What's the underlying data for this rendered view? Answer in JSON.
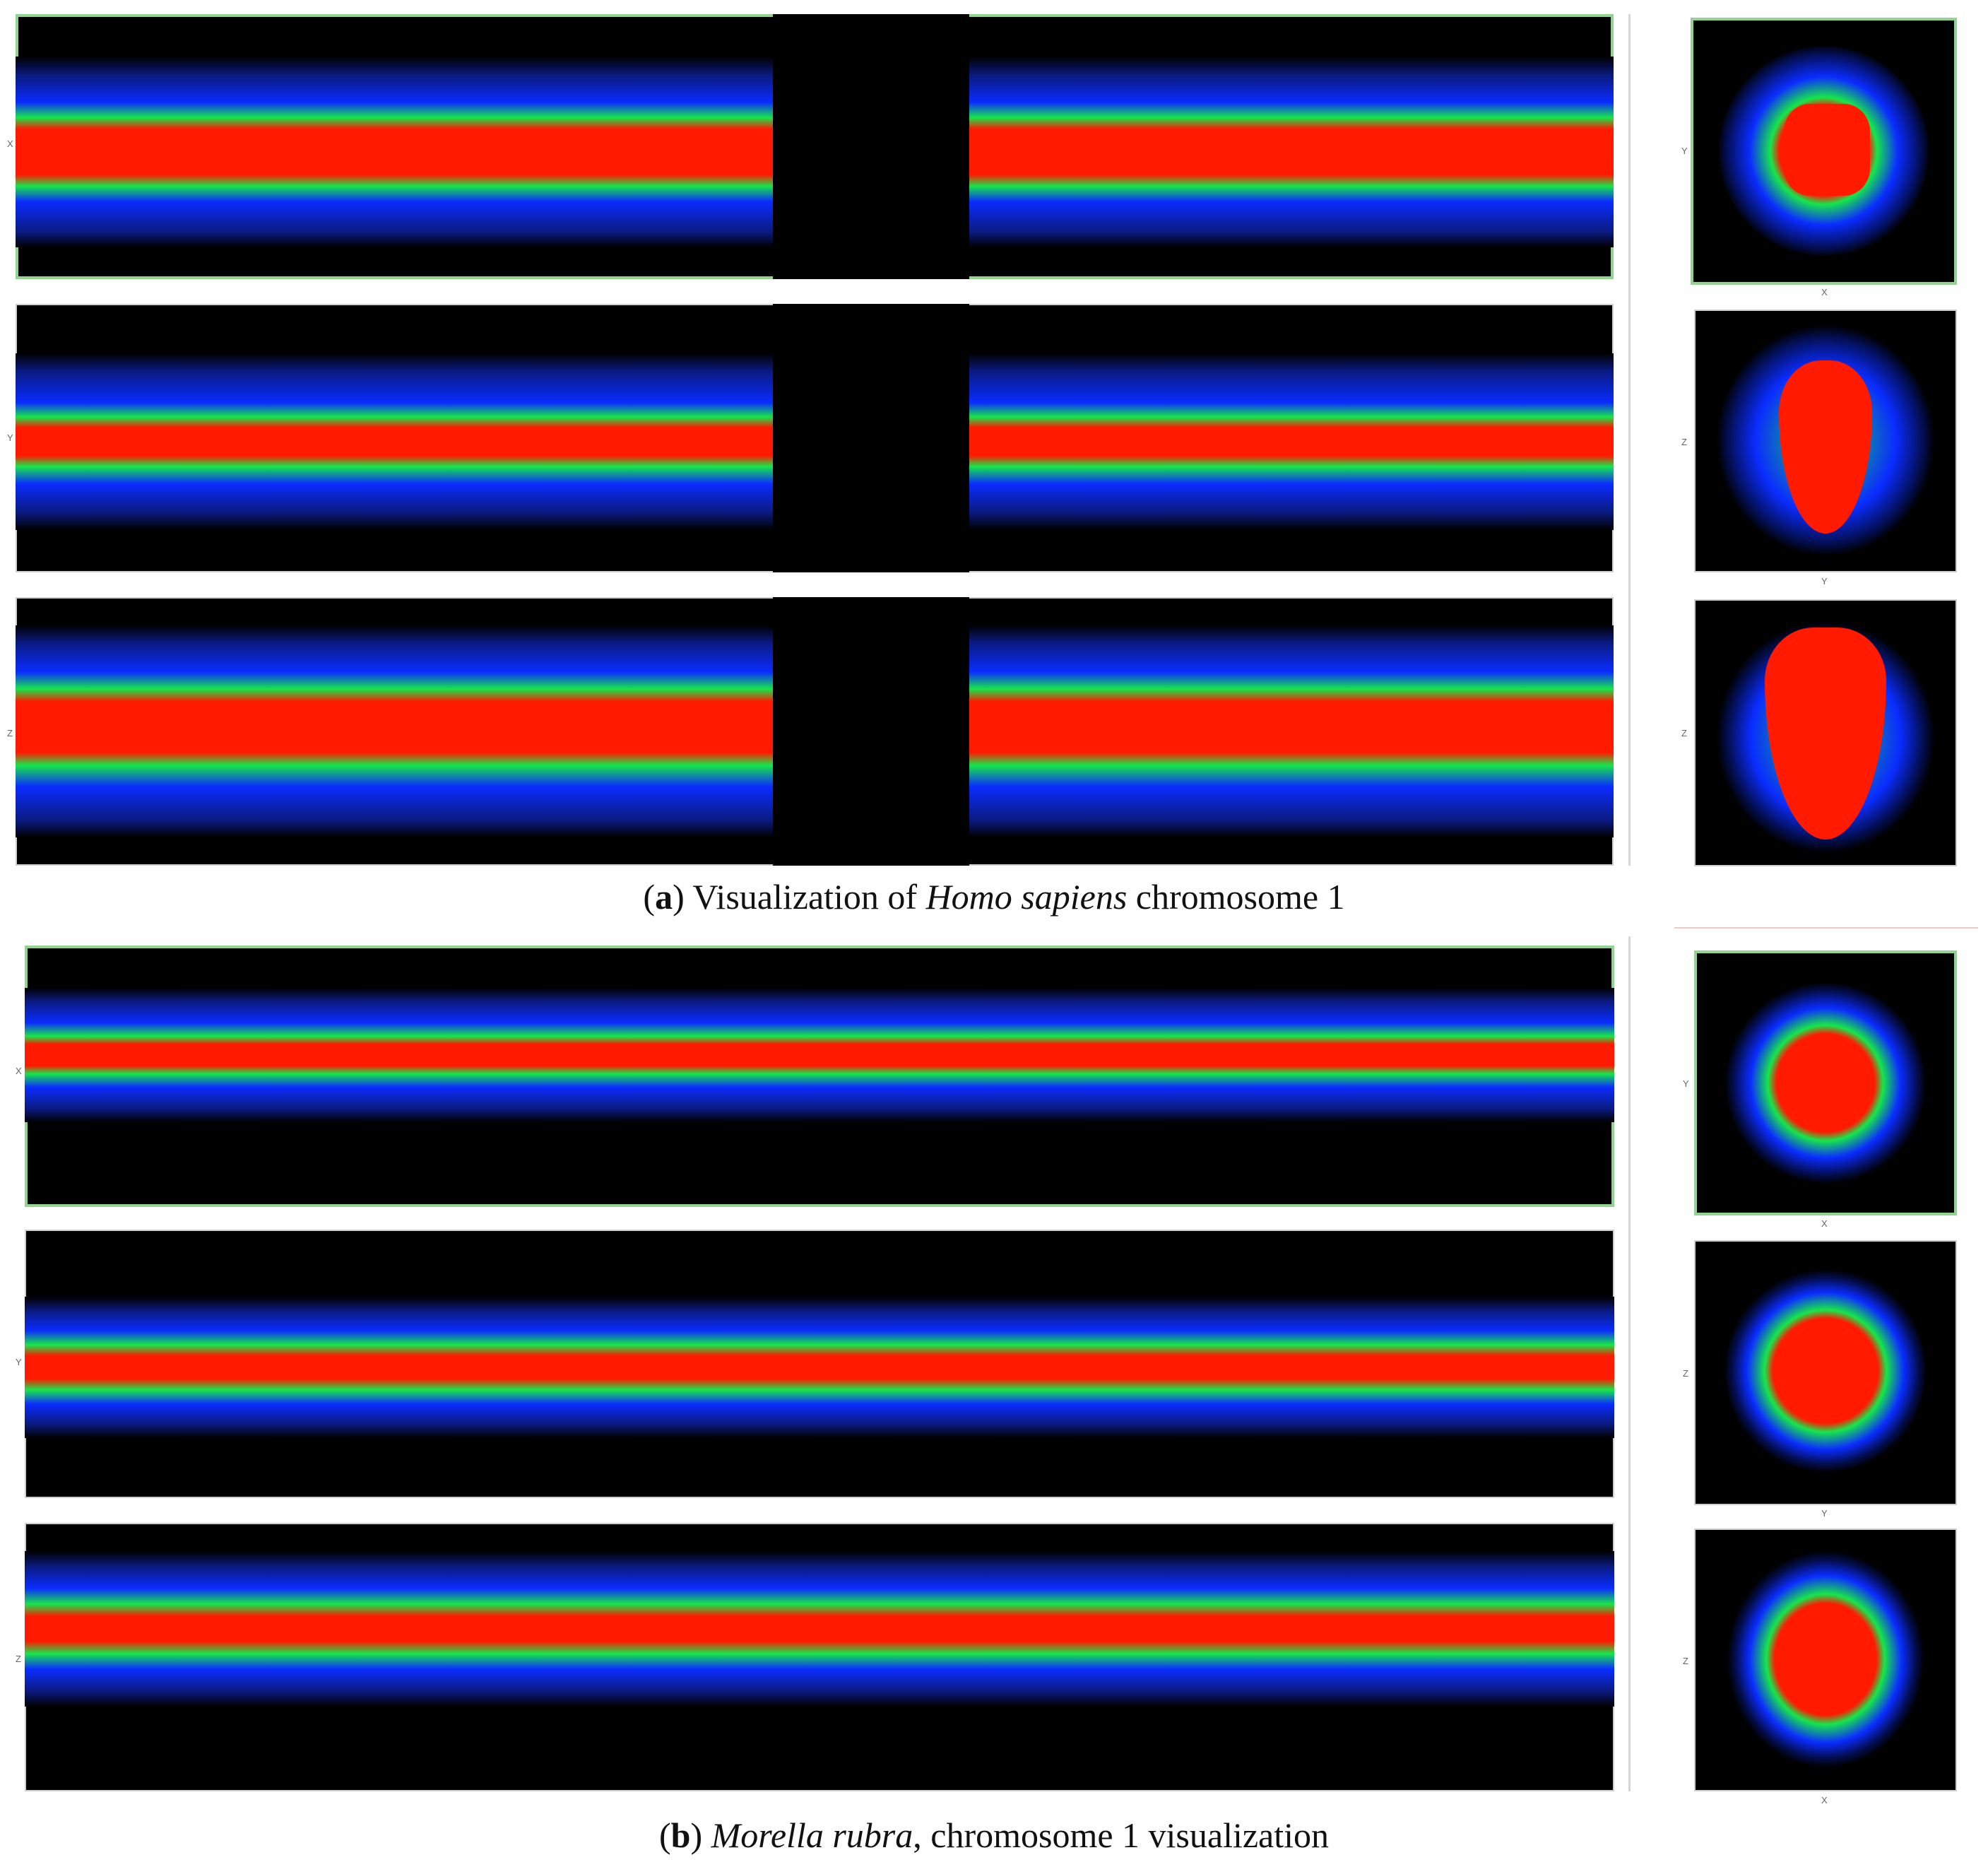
{
  "captions": {
    "a": {
      "letter": "a",
      "before": "Visualization of ",
      "species": "Homo sapiens",
      "after": " chromosome 1"
    },
    "b": {
      "letter": "b",
      "species": "Morella rubra",
      "after": ", chromosome 1 visualization"
    }
  },
  "axis_labels": {
    "a_row1": "X",
    "a_row2": "Y",
    "a_row3": "Z",
    "a_sq1_left": "Y",
    "a_sq1_bottom": "X",
    "a_sq2_left": "Z",
    "a_sq2_bottom": "Y",
    "a_sq3_left": "Z",
    "b_row1": "X",
    "b_row2": "Y",
    "b_row3": "Z",
    "b_sq1_left": "Y",
    "b_sq1_bottom": "X",
    "b_sq2_left": "Z",
    "b_sq2_bottom": "Y",
    "b_sq3_left": "Z",
    "b_sq3_bottom": "X"
  },
  "colors": {
    "background": "#000000",
    "low_density": "#0a2cff",
    "mid_density": "#16e64a",
    "high_density": "#ff1a00",
    "selected_border": "#8fd48f"
  }
}
